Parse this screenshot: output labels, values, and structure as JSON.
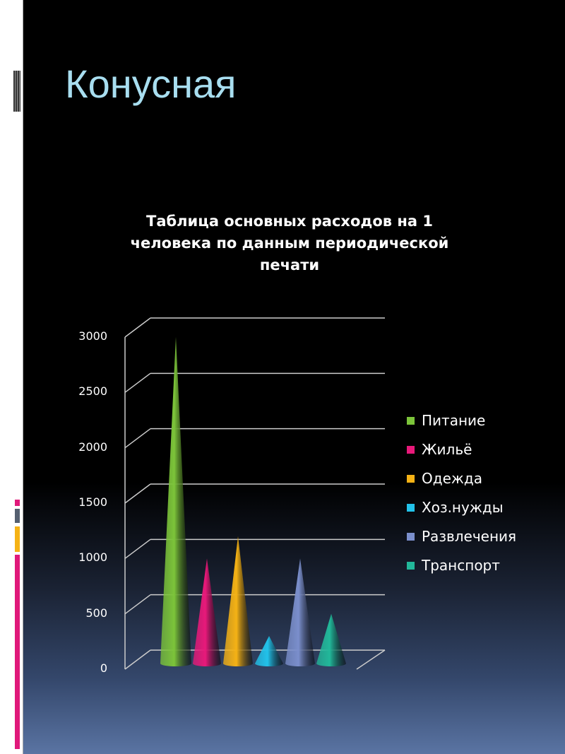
{
  "slide": {
    "title": "Конусная"
  },
  "chart_data": {
    "type": "bar",
    "style": "3d-cone",
    "title": "Таблица основных расходов на 1 человека по данным периодической печати",
    "title_lines": [
      "Таблица основных расходов на 1",
      "человека по данным периодической",
      "печати"
    ],
    "categories": [
      "Питание",
      "Жильё",
      "Одежда",
      "Хоз.нужды",
      "Развлечения",
      "Транспорт"
    ],
    "values": [
      3000,
      1000,
      1200,
      300,
      1000,
      500
    ],
    "colors": [
      "#7cc43a",
      "#e8197a",
      "#f5b215",
      "#22c2ea",
      "#7b8fcc",
      "#22b89a"
    ],
    "yticks": [
      "0",
      "500",
      "1000",
      "1500",
      "2000",
      "2500",
      "3000"
    ],
    "ylim": [
      0,
      3000
    ],
    "grid": true,
    "legend_position": "right"
  }
}
